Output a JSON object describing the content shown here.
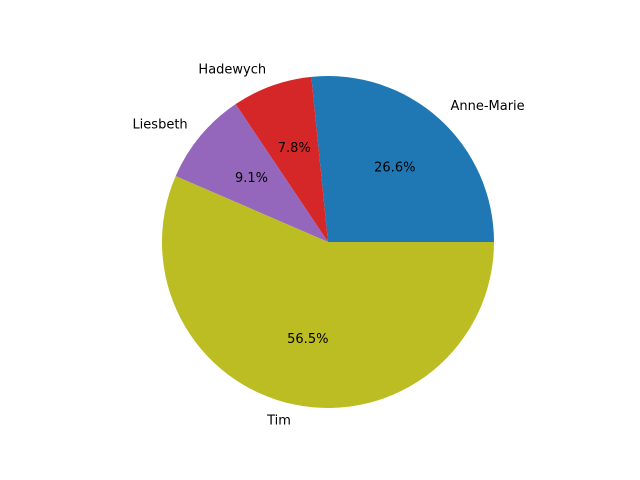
{
  "chart_data": {
    "type": "pie",
    "start_angle_deg": 0,
    "direction": "counterclockwise",
    "slices": [
      {
        "label": "Anne-Marie",
        "value": 26.6,
        "percent_label": "26.6%",
        "color": "#1f77b4"
      },
      {
        "label": "Hadewych",
        "value": 7.8,
        "percent_label": "7.8%",
        "color": "#d62728"
      },
      {
        "label": "Liesbeth",
        "value": 9.1,
        "percent_label": "9.1%",
        "color": "#9467bd"
      },
      {
        "label": "Tim",
        "value": 56.5,
        "percent_label": "56.5%",
        "color": "#bcbd22"
      }
    ]
  }
}
